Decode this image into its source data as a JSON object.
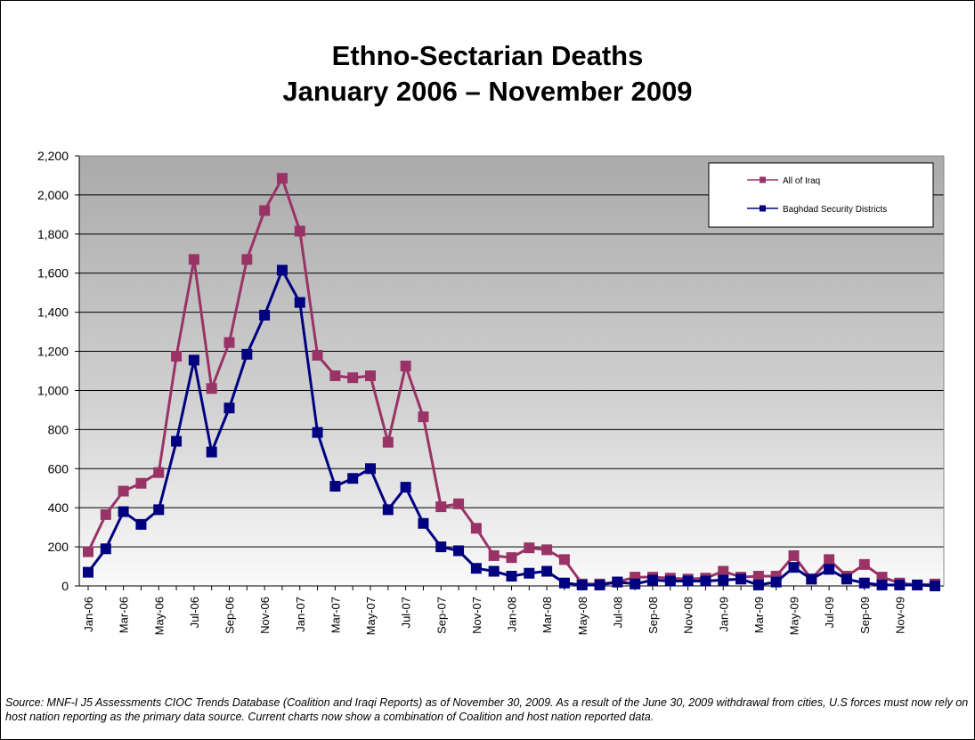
{
  "chart_data": {
    "type": "line",
    "title": "Ethno-Sectarian Deaths",
    "subtitle": "January 2006 – November 2009",
    "ylim": [
      0,
      2200
    ],
    "yticks": [
      "0",
      "200",
      "400",
      "600",
      "800",
      "1,000",
      "1,200",
      "1,400",
      "1,600",
      "1,800",
      "2,000",
      "2,200"
    ],
    "ytick_values": [
      0,
      200,
      400,
      600,
      800,
      1000,
      1200,
      1400,
      1600,
      1800,
      2000,
      2200
    ],
    "xtick_labels": [
      "Jan-06",
      "Mar-06",
      "May-06",
      "Jul-06",
      "Sep-06",
      "Nov-06",
      "Jan-07",
      "Mar-07",
      "May-07",
      "Jul-07",
      "Sep-07",
      "Nov-07",
      "Jan-08",
      "Mar-08",
      "May-08",
      "Jul-08",
      "Sep-08",
      "Nov-08",
      "Jan-09",
      "Mar-09",
      "May-09",
      "Jul-09",
      "Sep-09",
      "Nov-09"
    ],
    "grid": true,
    "legend_position": "top-right",
    "series": [
      {
        "name": "All of Iraq",
        "color": "#993366",
        "values": [
          175,
          365,
          485,
          525,
          580,
          1175,
          1670,
          1010,
          1245,
          1670,
          1920,
          2085,
          1815,
          1180,
          1075,
          1065,
          1075,
          735,
          1125,
          865,
          405,
          420,
          295,
          155,
          145,
          195,
          185,
          135,
          10,
          10,
          20,
          45,
          45,
          40,
          35,
          40,
          75,
          45,
          50,
          50,
          155,
          35,
          135,
          50,
          110,
          45,
          15,
          5,
          10
        ]
      },
      {
        "name": "Baghdad Security Districts",
        "color": "#000080",
        "values": [
          70,
          190,
          380,
          315,
          390,
          740,
          1155,
          685,
          910,
          1185,
          1385,
          1615,
          1450,
          785,
          510,
          550,
          600,
          390,
          505,
          320,
          200,
          180,
          90,
          75,
          50,
          65,
          75,
          15,
          5,
          5,
          20,
          10,
          30,
          25,
          25,
          25,
          30,
          35,
          5,
          20,
          95,
          35,
          85,
          35,
          15,
          5,
          5,
          5,
          0
        ]
      }
    ]
  },
  "source_text": "Source:  MNF-I J5 Assessments CIOC Trends Database (Coalition and Iraqi Reports) as of November 30, 2009. As a result of the June 30, 2009 withdrawal from cities, U.S forces must now rely on host nation reporting as the primary data source. Current charts now show a combination of Coalition and host nation reported data."
}
